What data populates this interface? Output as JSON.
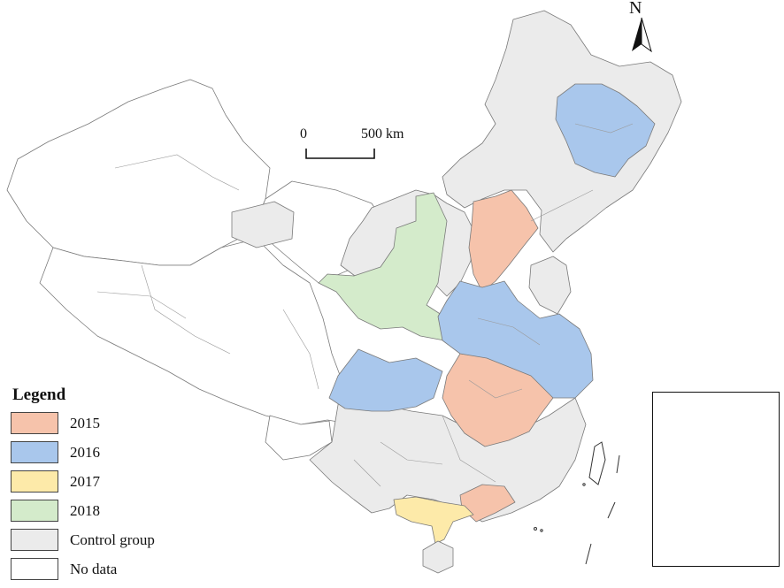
{
  "legend": {
    "title": "Legend",
    "items": [
      {
        "label": "2015",
        "color": "#f6c3ab"
      },
      {
        "label": "2016",
        "color": "#a9c7ec"
      },
      {
        "label": "2017",
        "color": "#fdeaa9"
      },
      {
        "label": "2018",
        "color": "#d4ebcb"
      },
      {
        "label": "Control group",
        "color": "#ebebeb"
      },
      {
        "label": "No data",
        "color": "#ffffff"
      }
    ]
  },
  "scale_bar": {
    "start": "0",
    "end": "500 km"
  },
  "north_arrow": {
    "label": "N"
  }
}
